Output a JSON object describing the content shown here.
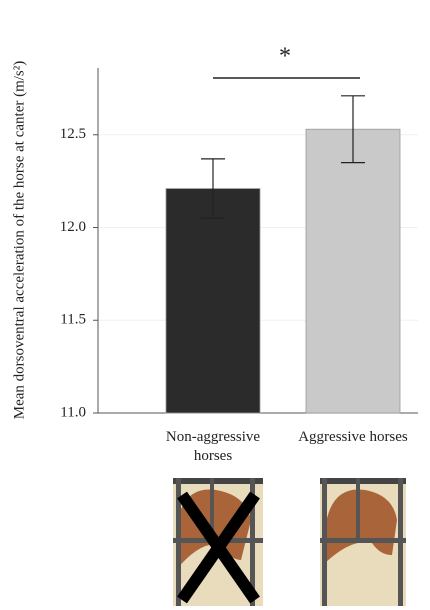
{
  "chart_data": {
    "type": "bar",
    "y_label": "Mean dorsoventral acceleration of the horse at canter (m/s²)",
    "categories": [
      "Non-aggressive horses",
      "Aggressive horses"
    ],
    "values": [
      12.21,
      12.53
    ],
    "errors": [
      0.16,
      0.18
    ],
    "colors": [
      "#2b2b2b",
      "#c9c9c9"
    ],
    "ylim": [
      11.0,
      12.86
    ],
    "yticks": [
      {
        "value": 11.0,
        "label": "11.0"
      },
      11.5,
      {
        "value": 12.0,
        "label": "12.0"
      },
      12.5
    ],
    "grid": true,
    "annotation": "*"
  }
}
